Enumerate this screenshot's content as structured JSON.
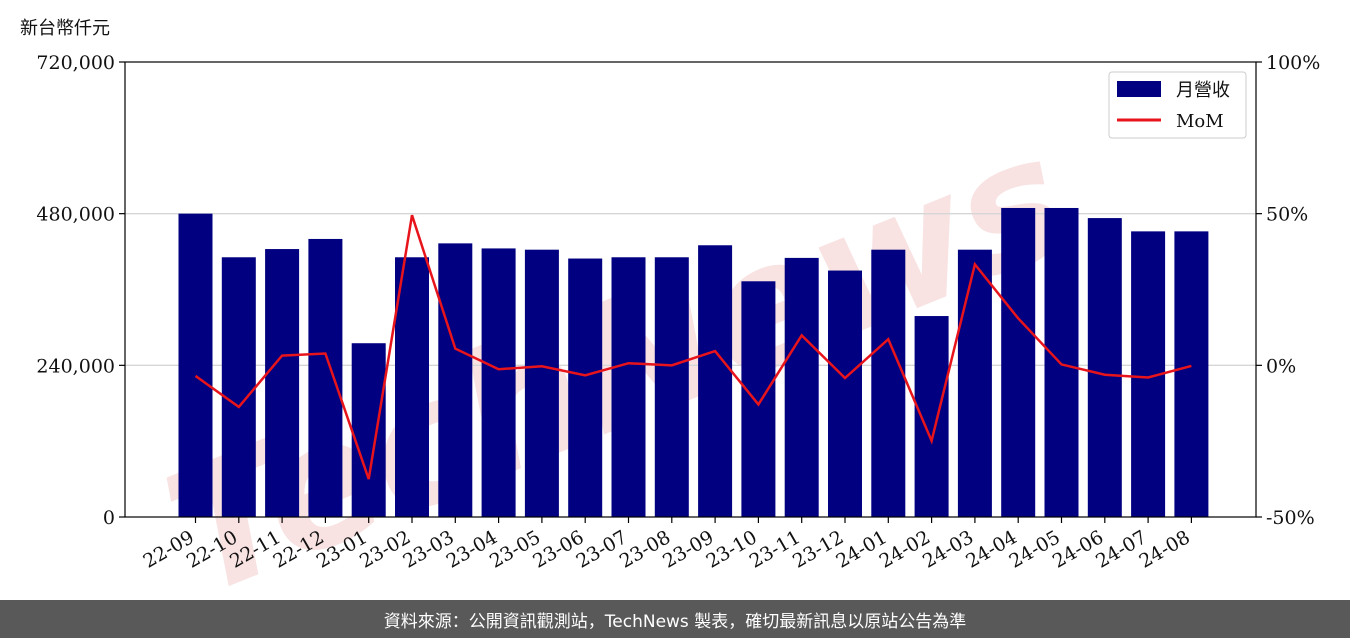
{
  "unit_label": "新台幣仟元",
  "watermark": "TechNews",
  "footer": "資料來源：公開資訊觀測站，TechNews 製表，確切最新訊息以原站公告為準",
  "chart_data": {
    "type": "bar",
    "categories": [
      "22-09",
      "22-10",
      "22-11",
      "22-12",
      "23-01",
      "23-02",
      "23-03",
      "23-04",
      "23-05",
      "23-06",
      "23-07",
      "23-08",
      "23-09",
      "23-10",
      "23-11",
      "23-12",
      "24-01",
      "24-02",
      "24-03",
      "24-04",
      "24-05",
      "24-06",
      "24-07",
      "24-08"
    ],
    "series": [
      {
        "name": "月營收",
        "type": "bar",
        "axis": "left",
        "color": "#000080",
        "values": [
          480000,
          411000,
          424000,
          440000,
          275000,
          411000,
          433000,
          425000,
          423000,
          409000,
          411000,
          411000,
          430000,
          373000,
          410000,
          390000,
          423000,
          318000,
          423000,
          489000,
          489000,
          473000,
          452000,
          452000
        ]
      },
      {
        "name": "MoM",
        "type": "line",
        "axis": "right",
        "color": "#e8141c",
        "values": [
          -3.5,
          -13.7,
          3.2,
          3.9,
          -37.5,
          49.5,
          5.5,
          -1.3,
          -0.3,
          -3.3,
          0.7,
          0.0,
          4.7,
          -12.9,
          9.9,
          -4.2,
          8.6,
          -24.9,
          33.3,
          15.5,
          0.3,
          -3.1,
          -4.0,
          -0.2
        ]
      }
    ],
    "y_left": {
      "min": 0,
      "max": 720000,
      "ticks": [
        "0",
        "240,000",
        "480,000",
        "720,000"
      ],
      "tick_values": [
        0,
        240000,
        480000,
        720000
      ]
    },
    "y_right": {
      "min": -50,
      "max": 100,
      "ticks": [
        "-50%",
        "0%",
        "50%",
        "100%"
      ],
      "tick_values": [
        -50,
        0,
        50,
        100
      ]
    },
    "grid": "horizontal",
    "legend": "top-right"
  }
}
